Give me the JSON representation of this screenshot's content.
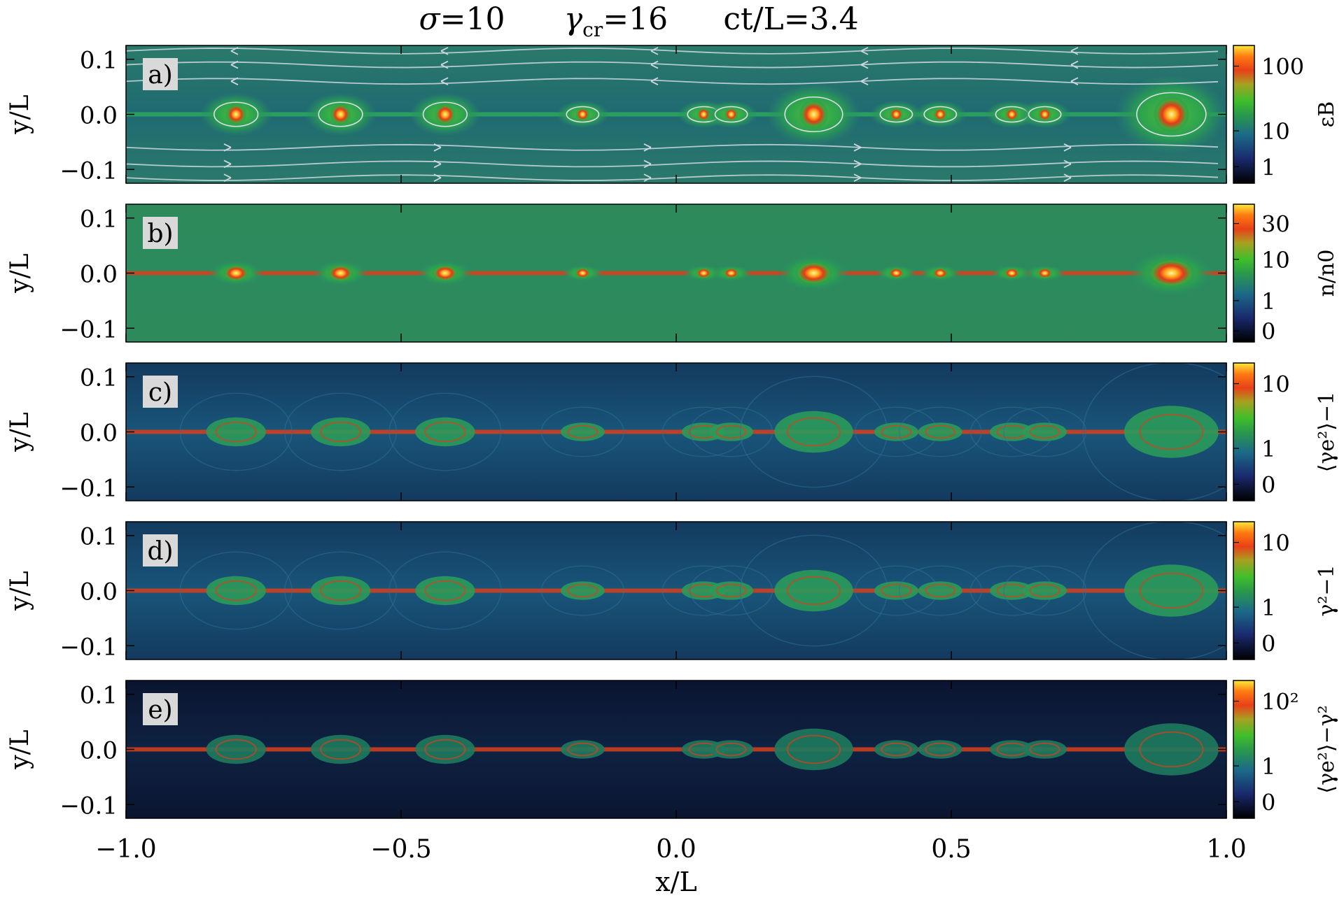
{
  "figure": {
    "header": [
      {
        "sym": "σ",
        "sub": "",
        "rest": "=10"
      },
      {
        "sym": "γ",
        "sub": "cr",
        "rest": "=16"
      },
      {
        "sym": "",
        "sub": "",
        "rest": "ct/L=3.4"
      }
    ],
    "xlabel": "x/L",
    "xticks": [
      "−1.0",
      "−0.5",
      "0.0",
      "0.5",
      "1.0"
    ],
    "x_values": [
      -1.0,
      -0.5,
      0.0,
      0.5,
      1.0
    ],
    "panels": [
      {
        "tag": "a)",
        "ylabel": "y/L",
        "yticks": [
          "0.1",
          "0.0",
          "−0.1"
        ],
        "colorbar_ticks": [
          "100",
          "10",
          "1"
        ],
        "colorbar_label": "εB",
        "field_lines": true
      },
      {
        "tag": "b)",
        "ylabel": "y/L",
        "yticks": [
          "0.1",
          "0.0",
          "−0.1"
        ],
        "colorbar_ticks": [
          "30",
          "10",
          "1",
          "0"
        ],
        "colorbar_label": "n/n0",
        "field_lines": false
      },
      {
        "tag": "c)",
        "ylabel": "y/L",
        "yticks": [
          "0.1",
          "0.0",
          "−0.1"
        ],
        "colorbar_ticks": [
          "10",
          "1",
          "0"
        ],
        "colorbar_label": "⟨γe²⟩−1",
        "field_lines": false
      },
      {
        "tag": "d)",
        "ylabel": "y/L",
        "yticks": [
          "0.1",
          "0.0",
          "−0.1"
        ],
        "colorbar_ticks": [
          "10",
          "1",
          "0"
        ],
        "colorbar_label": "γ²−1",
        "field_lines": false
      },
      {
        "tag": "e)",
        "ylabel": "y/L",
        "yticks": [
          "0.1",
          "0.0",
          "−0.1"
        ],
        "colorbar_ticks": [
          "10²",
          "1",
          "0"
        ],
        "colorbar_label": "⟨γe²⟩−γ²",
        "field_lines": false
      }
    ],
    "plasmoids_x": [
      -0.8,
      -0.61,
      -0.42,
      -0.17,
      0.05,
      0.1,
      0.25,
      0.4,
      0.48,
      0.61,
      0.67,
      0.9
    ],
    "colormap": [
      "#000000",
      "#1a2a6e",
      "#1b6a88",
      "#2a9a4a",
      "#3fbf2a",
      "#e8c01a",
      "#e84018",
      "#ff3a10",
      "#ffe83a"
    ]
  }
}
